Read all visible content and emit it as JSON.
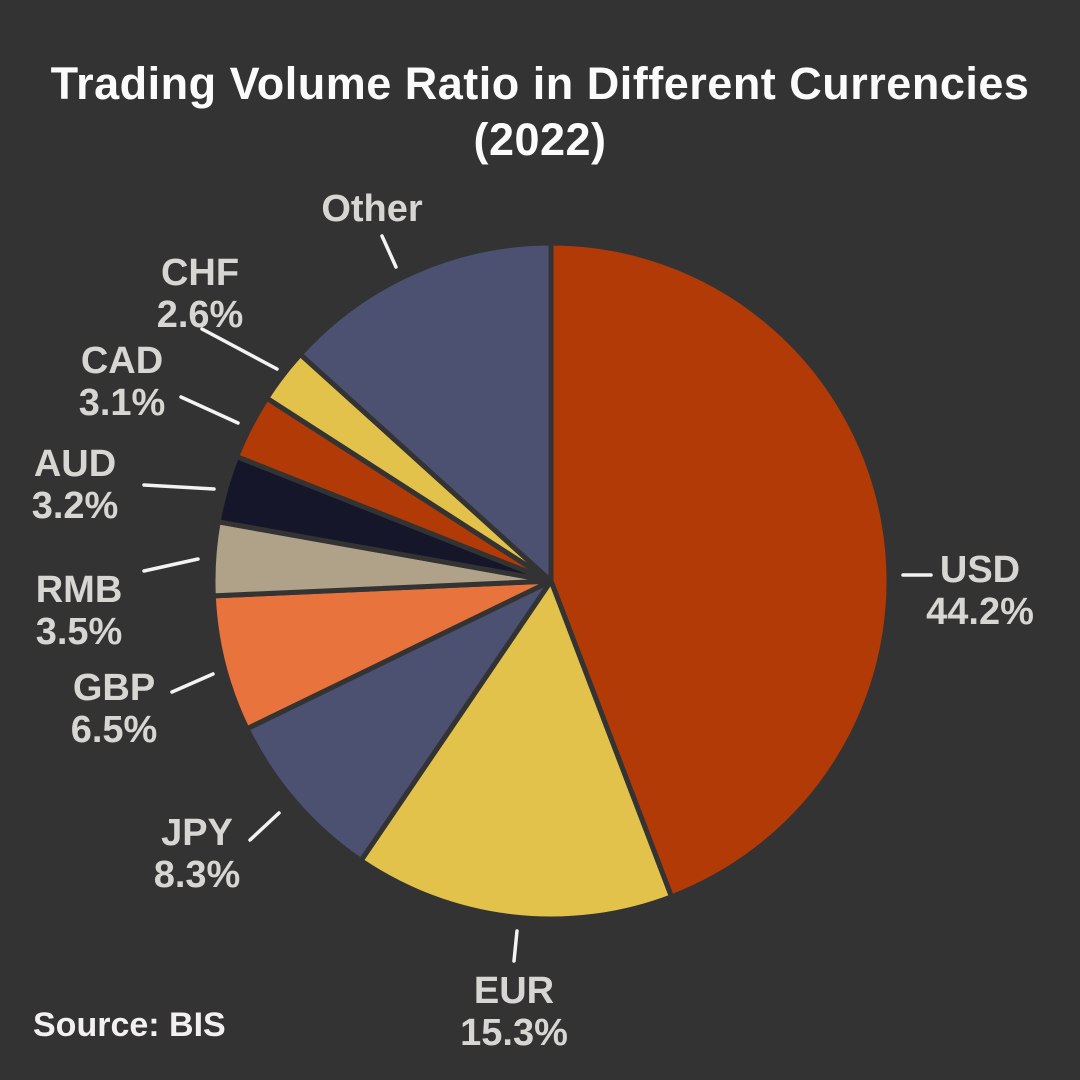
{
  "title": {
    "line1": "Trading Volume Ratio in Different Currencies",
    "line2": "(2022)"
  },
  "source": "Source: BIS",
  "theme": {
    "background": "#333333",
    "title_color": "#fbfbfb",
    "label_color": "#d8d6d3",
    "source_color": "#f2f1ef",
    "leader_line_color": "#f3f3f3",
    "slice_border_color": "#333333"
  },
  "chart_data": {
    "type": "pie",
    "title": "Trading Volume Ratio in Different Currencies (2022)",
    "source": "Source: BIS",
    "start_angle_deg": 0,
    "direction": "clockwise",
    "legend_position": "none",
    "slices": [
      {
        "label": "USD",
        "value": 44.2,
        "pct_text": "44.2%",
        "color": "#b23a07"
      },
      {
        "label": "EUR",
        "value": 15.3,
        "pct_text": "15.3%",
        "color": "#e2c24a"
      },
      {
        "label": "JPY",
        "value": 8.3,
        "pct_text": "8.3%",
        "color": "#4c5172"
      },
      {
        "label": "GBP",
        "value": 6.5,
        "pct_text": "6.5%",
        "color": "#e8733c"
      },
      {
        "label": "RMB",
        "value": 3.5,
        "pct_text": "3.5%",
        "color": "#b0a189"
      },
      {
        "label": "AUD",
        "value": 3.2,
        "pct_text": "3.2%",
        "color": "#16162a"
      },
      {
        "label": "CAD",
        "value": 3.1,
        "pct_text": "3.1%",
        "color": "#b23a07"
      },
      {
        "label": "CHF",
        "value": 2.6,
        "pct_text": "2.6%",
        "color": "#e2c24a"
      },
      {
        "label": "Other",
        "value": 13.3,
        "pct_text": "",
        "color": "#4c5172"
      }
    ]
  }
}
